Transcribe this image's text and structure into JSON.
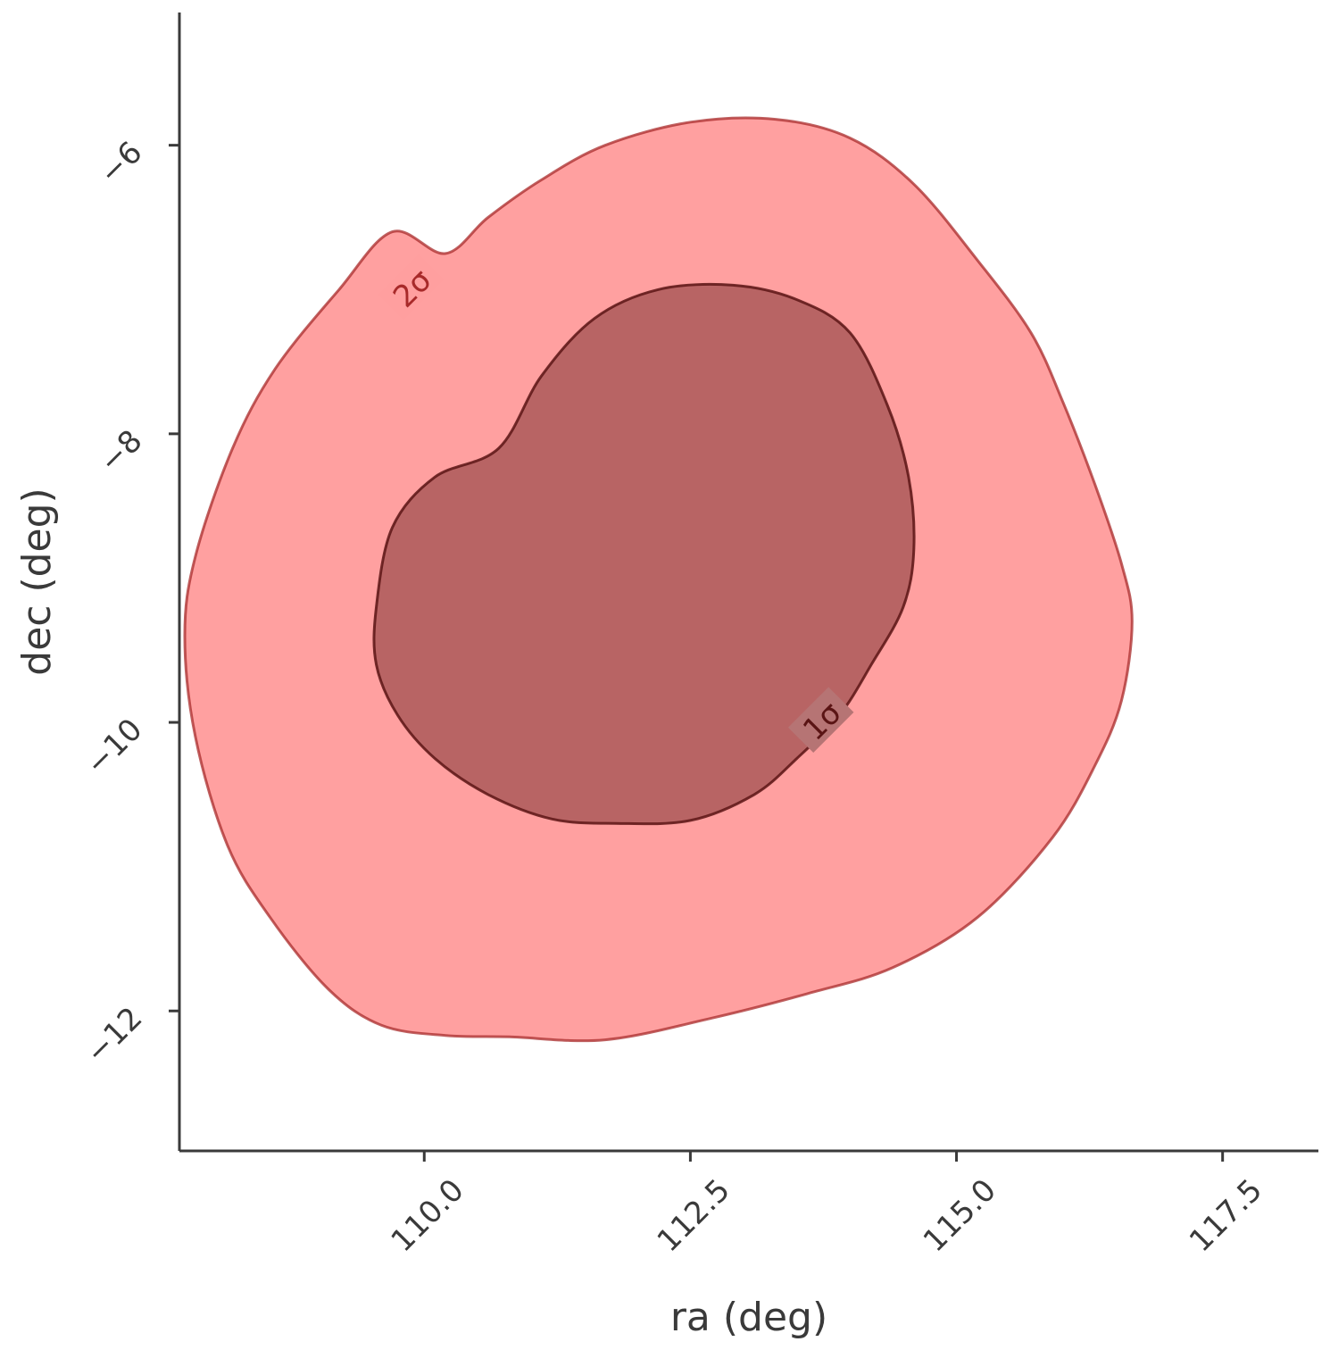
{
  "chart_data": {
    "type": "contour",
    "title": "",
    "xlabel": "ra (deg)",
    "ylabel": "dec (deg)",
    "xlim": [
      107.7,
      118.4
    ],
    "ylim": [
      -12.97,
      -5.08
    ],
    "xticks": [
      110.0,
      112.5,
      115.0,
      117.5
    ],
    "xtick_labels": [
      "110.0",
      "112.5",
      "115.0",
      "117.5"
    ],
    "yticks": [
      -6,
      -8,
      -10,
      -12
    ],
    "ytick_labels": [
      "−6",
      "−8",
      "−10",
      "−12"
    ],
    "grid": false,
    "colors": {
      "outer_fill": "#ff8080",
      "outer_edge": "#a82a2a",
      "inner_fill": "#a05050",
      "inner_edge": "#5a1414",
      "axis": "#3a3a3a"
    },
    "contours": [
      {
        "level": "2σ",
        "label": "2σ",
        "label_at": [
          109.9,
          -7.0
        ],
        "points": [
          [
            110.2,
            -6.75
          ],
          [
            110.6,
            -6.5
          ],
          [
            111.1,
            -6.24
          ],
          [
            111.7,
            -6.0
          ],
          [
            112.5,
            -5.84
          ],
          [
            113.3,
            -5.82
          ],
          [
            114.0,
            -5.95
          ],
          [
            114.6,
            -6.27
          ],
          [
            115.2,
            -6.8
          ],
          [
            115.7,
            -7.3
          ],
          [
            116.0,
            -7.78
          ],
          [
            116.3,
            -8.35
          ],
          [
            116.55,
            -8.9
          ],
          [
            116.65,
            -9.3
          ],
          [
            116.55,
            -9.85
          ],
          [
            116.3,
            -10.3
          ],
          [
            115.9,
            -10.8
          ],
          [
            115.2,
            -11.35
          ],
          [
            114.4,
            -11.7
          ],
          [
            113.6,
            -11.88
          ],
          [
            112.7,
            -12.05
          ],
          [
            111.7,
            -12.2
          ],
          [
            110.8,
            -12.18
          ],
          [
            110.2,
            -12.17
          ],
          [
            109.6,
            -12.1
          ],
          [
            109.1,
            -11.85
          ],
          [
            108.55,
            -11.35
          ],
          [
            108.15,
            -10.85
          ],
          [
            107.85,
            -10.1
          ],
          [
            107.75,
            -9.4
          ],
          [
            107.85,
            -8.85
          ],
          [
            108.2,
            -8.1
          ],
          [
            108.6,
            -7.55
          ],
          [
            109.2,
            -7.0
          ],
          [
            109.7,
            -6.6
          ]
        ]
      },
      {
        "level": "1σ",
        "label": "1σ",
        "label_at": [
          113.75,
          -10.0
        ],
        "points": [
          [
            110.7,
            -8.1
          ],
          [
            111.1,
            -7.6
          ],
          [
            111.6,
            -7.2
          ],
          [
            112.2,
            -7.0
          ],
          [
            112.9,
            -6.97
          ],
          [
            113.5,
            -7.07
          ],
          [
            114.0,
            -7.3
          ],
          [
            114.35,
            -7.8
          ],
          [
            114.55,
            -8.3
          ],
          [
            114.6,
            -8.8
          ],
          [
            114.5,
            -9.2
          ],
          [
            114.2,
            -9.6
          ],
          [
            113.9,
            -9.95
          ],
          [
            113.5,
            -10.25
          ],
          [
            113.1,
            -10.5
          ],
          [
            112.5,
            -10.68
          ],
          [
            111.8,
            -10.7
          ],
          [
            111.2,
            -10.67
          ],
          [
            110.6,
            -10.5
          ],
          [
            110.1,
            -10.25
          ],
          [
            109.75,
            -9.95
          ],
          [
            109.55,
            -9.6
          ],
          [
            109.55,
            -9.2
          ],
          [
            109.7,
            -8.65
          ],
          [
            110.1,
            -8.3
          ]
        ]
      }
    ]
  }
}
